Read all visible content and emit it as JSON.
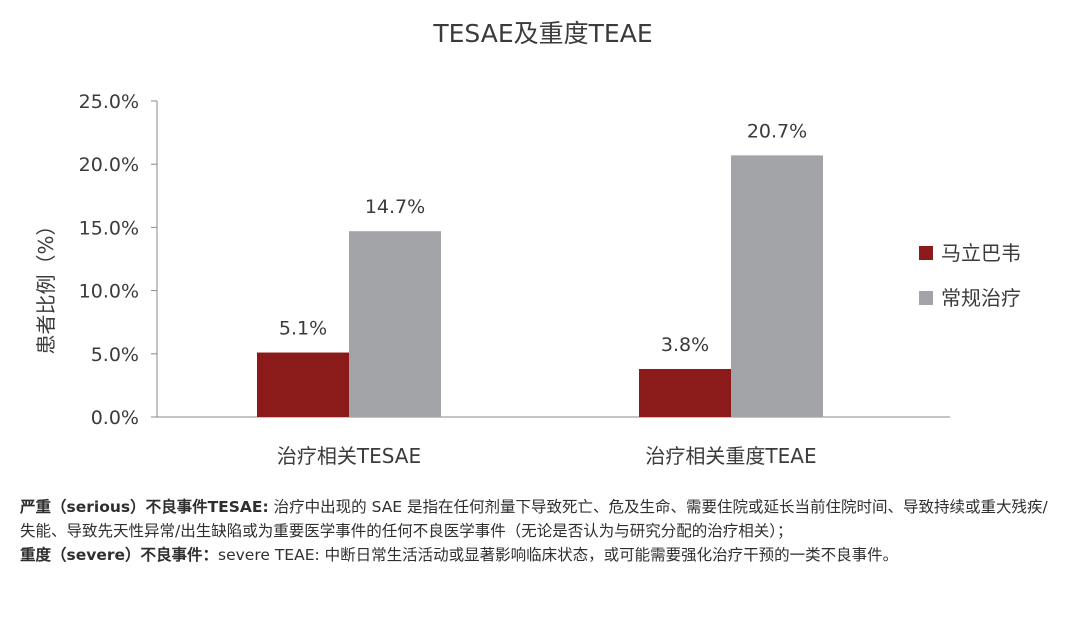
{
  "chart_data": {
    "type": "bar",
    "title": "TESAE及重度TEAE",
    "ylabel": "患者比例（%）",
    "xlabel": "",
    "categories": [
      "治疗相关TESAE",
      "治疗相关重度TEAE"
    ],
    "series": [
      {
        "name": "马立巴韦",
        "color": "#8b1a1a",
        "values": [
          5.1,
          3.8
        ],
        "labels": [
          "5.1%",
          "3.8%"
        ]
      },
      {
        "name": "常规治疗",
        "color": "#a3a4a8",
        "values": [
          14.7,
          20.7
        ],
        "labels": [
          "14.7%",
          "20.7%"
        ]
      }
    ],
    "ylim": [
      0,
      25
    ],
    "yticks": [
      "0.0%",
      "5.0%",
      "10.0%",
      "15.0%",
      "20.0%",
      "25.0%"
    ],
    "ytick_values": [
      0,
      5,
      10,
      15,
      20,
      25
    ],
    "grid": false,
    "legend_position": "right"
  },
  "notes": {
    "sae_term": "严重（serious）不良事件TESAE:",
    "sae_text": " 治疗中出现的 SAE 是指在任何剂量下导致死亡、危及生命、需要住院或延长当前住院时间、导致持续或重大残疾/失能、导致先天性异常/出生缺陷或为重要医学事件的任何不良医学事件（无论是否认为与研究分配的治疗相关）；",
    "severe_term": "重度（severe）不良事件：",
    "severe_text": "severe TEAE: 中断日常生活活动或显著影响临床状态，或可能需要强化治疗干预的一类不良事件。"
  }
}
